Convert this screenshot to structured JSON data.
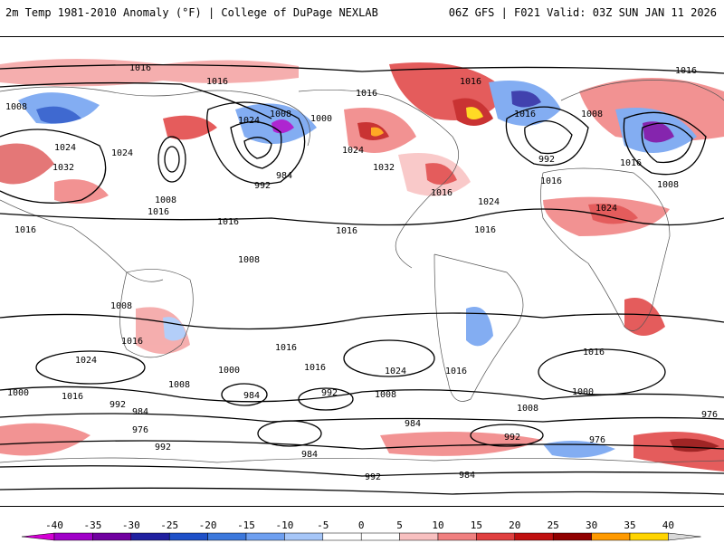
{
  "header": {
    "left": "2m Temp 1981-2010 Anomaly (°F) | College of DuPage NEXLAB",
    "right": "06Z GFS | F021 Valid: 03Z SUN JAN 11 2026"
  },
  "isobar_labels": [
    "1016",
    "1016",
    "1016",
    "1016",
    "1016",
    "1008",
    "1024",
    "1008",
    "1000",
    "1024",
    "1032",
    "1024",
    "1008",
    "1016",
    "984",
    "992",
    "1016",
    "1032",
    "1016",
    "1024",
    "1024",
    "1016",
    "1016",
    "1008",
    "1016",
    "992",
    "1016",
    "1024",
    "1016",
    "1008",
    "1008",
    "1016",
    "1008",
    "1016",
    "1024",
    "1016",
    "1016",
    "1024",
    "1016",
    "1008",
    "984",
    "992",
    "1000",
    "1016",
    "1008",
    "984",
    "992",
    "976",
    "992",
    "984",
    "1000",
    "984",
    "992",
    "976",
    "992",
    "984",
    "1000",
    "1008",
    "976",
    "1016"
  ],
  "colorbar": {
    "ticks": [
      "-40",
      "-35",
      "-30",
      "-25",
      "-20",
      "-15",
      "-10",
      "-5",
      "0",
      "5",
      "10",
      "15",
      "20",
      "25",
      "30",
      "35",
      "40"
    ],
    "colors": [
      "#d400d4",
      "#a000c8",
      "#7000a0",
      "#2020a0",
      "#1e50c8",
      "#3c78dc",
      "#6e9ff0",
      "#a6c6f8",
      "#ffffff",
      "#ffffff",
      "#f8c0c0",
      "#f08080",
      "#e04040",
      "#c01010",
      "#900000",
      "#ff9a00",
      "#ffd400"
    ]
  }
}
